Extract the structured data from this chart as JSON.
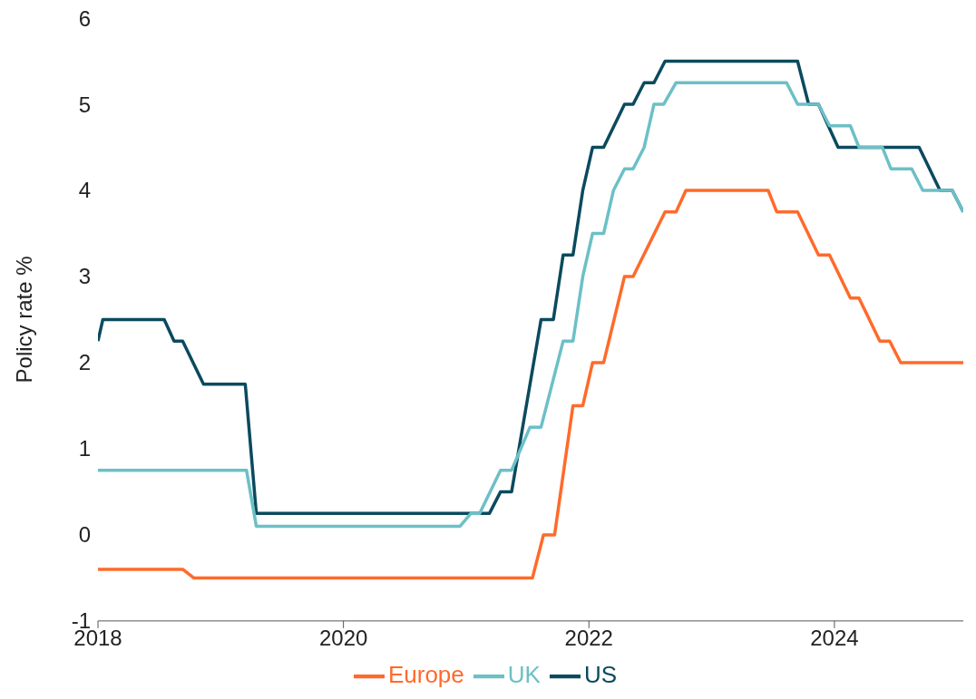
{
  "chart_data": {
    "type": "line",
    "ylabel": "Policy rate %",
    "xlim": [
      2018,
      2025.05
    ],
    "xticks": [
      2018,
      2020,
      2022,
      2024
    ],
    "ylim": [
      -1,
      6
    ],
    "yticks": [
      -1,
      0,
      1,
      2,
      3,
      4,
      5,
      6
    ],
    "grid": false,
    "legend": "bottom",
    "marker": "none",
    "line_style": "solid",
    "series": [
      {
        "name": "US",
        "color": "#0b4a5e",
        "x": [
          2018,
          2018.04,
          2018.54,
          2018.62,
          2018.69,
          2018.86,
          2019.2,
          2019.29,
          2021.19,
          2021.28,
          2021.37,
          2021.61,
          2021.71,
          2021.79,
          2021.87,
          2021.95,
          2022.03,
          2022.12,
          2022.29,
          2022.36,
          2022.45,
          2022.53,
          2022.62,
          2023.7,
          2023.79,
          2023.87,
          2024.03,
          2024.69,
          2024.86,
          2024.96,
          2025.05
        ],
        "values": [
          2.25,
          2.5,
          2.5,
          2.25,
          2.25,
          1.75,
          1.75,
          0.25,
          0.25,
          0.5,
          0.5,
          2.5,
          2.5,
          3.25,
          3.25,
          4.0,
          4.5,
          4.5,
          5.0,
          5.0,
          5.25,
          5.25,
          5.5,
          5.5,
          5.0,
          5.0,
          4.5,
          4.5,
          4.0,
          4.0,
          3.75
        ]
      },
      {
        "name": "UK",
        "color": "#6cc0c6",
        "x": [
          2018,
          2019.21,
          2019.29,
          2020.95,
          2021.04,
          2021.11,
          2021.28,
          2021.37,
          2021.52,
          2021.61,
          2021.79,
          2021.87,
          2021.95,
          2022.03,
          2022.12,
          2022.2,
          2022.29,
          2022.36,
          2022.45,
          2022.53,
          2022.61,
          2022.71,
          2023.61,
          2023.7,
          2023.87,
          2023.96,
          2024.13,
          2024.2,
          2024.39,
          2024.46,
          2024.63,
          2024.72,
          2024.96,
          2025.05
        ],
        "values": [
          0.75,
          0.75,
          0.1,
          0.1,
          0.25,
          0.25,
          0.75,
          0.75,
          1.25,
          1.25,
          2.25,
          2.25,
          3.0,
          3.5,
          3.5,
          4.0,
          4.25,
          4.25,
          4.5,
          5.0,
          5.0,
          5.25,
          5.25,
          5.0,
          5.0,
          4.75,
          4.75,
          4.5,
          4.5,
          4.25,
          4.25,
          4.0,
          4.0,
          3.75
        ]
      },
      {
        "name": "Europe",
        "color": "#ff6a2a",
        "x": [
          2018,
          2018.69,
          2018.78,
          2021.54,
          2021.63,
          2021.72,
          2021.87,
          2021.95,
          2022.03,
          2022.12,
          2022.29,
          2022.36,
          2022.62,
          2022.71,
          2022.79,
          2023.46,
          2023.53,
          2023.7,
          2023.87,
          2023.96,
          2024.13,
          2024.2,
          2024.37,
          2024.45,
          2024.54,
          2025.05
        ],
        "values": [
          -0.4,
          -0.4,
          -0.5,
          -0.5,
          0.0,
          0.0,
          1.5,
          1.5,
          2.0,
          2.0,
          3.0,
          3.0,
          3.75,
          3.75,
          4.0,
          4.0,
          3.75,
          3.75,
          3.25,
          3.25,
          2.75,
          2.75,
          2.25,
          2.25,
          2.0,
          2.0
        ]
      }
    ]
  }
}
